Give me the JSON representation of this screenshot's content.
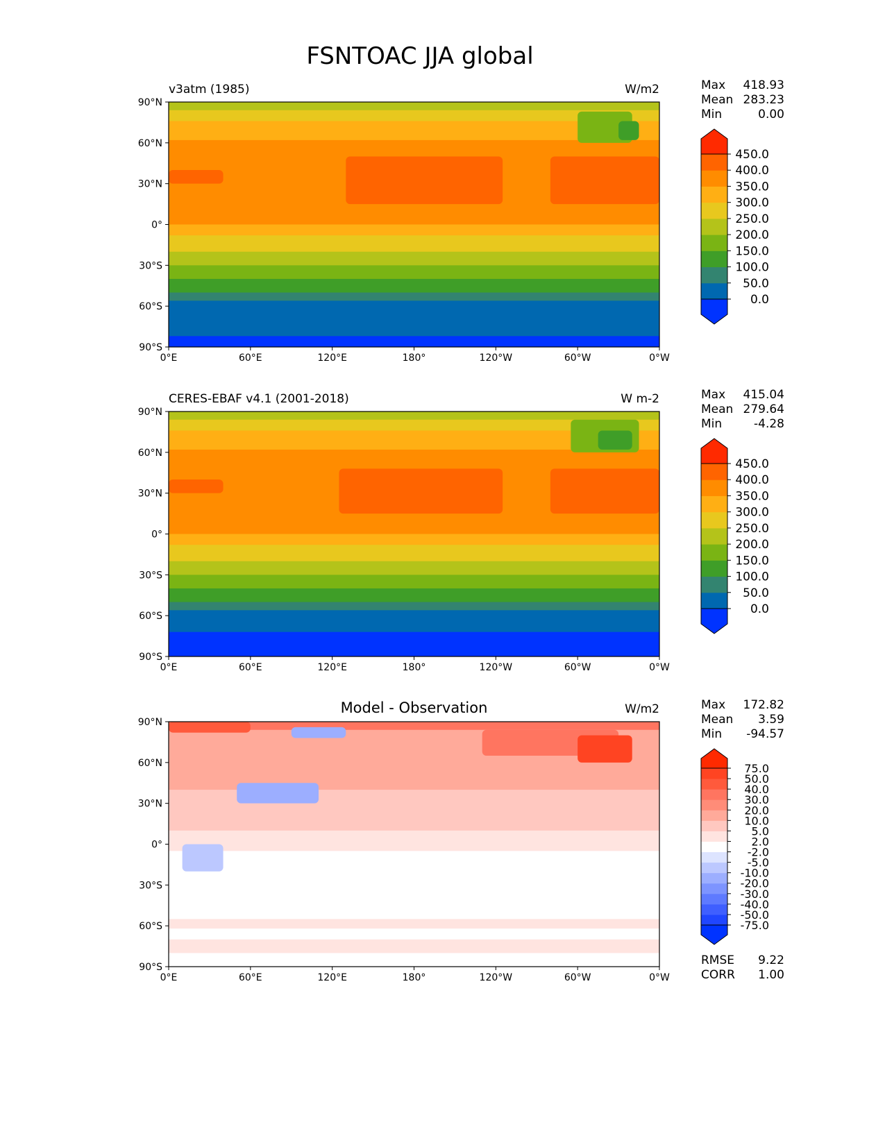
{
  "chart_data": [
    {
      "type": "heatmap",
      "title": "FSNTOAC JJA global",
      "subtitle": "v3atm (1985)",
      "units": "W/m2",
      "stats": {
        "max_label": "Max",
        "max": "418.93",
        "mean_label": "Mean",
        "mean": "283.23",
        "min_label": "Min",
        "min": "0.00"
      },
      "levels": [
        0,
        50,
        100,
        150,
        200,
        250,
        300,
        350,
        400,
        450
      ],
      "level_labels": [
        "0.0",
        "50.0",
        "100.0",
        "150.0",
        "200.0",
        "250.0",
        "300.0",
        "350.0",
        "400.0",
        "450.0"
      ],
      "colors": [
        "#0033ff",
        "#0068b0",
        "#338470",
        "#3f9e28",
        "#7ab414",
        "#b4c31a",
        "#e8c81e",
        "#ffaf14",
        "#ff8c00",
        "#ff6400",
        "#ff2a00"
      ],
      "bands": [
        [
          90,
          84,
          225
        ],
        [
          84,
          76,
          275
        ],
        [
          76,
          62,
          325
        ],
        [
          62,
          20,
          375
        ],
        [
          20,
          0,
          375
        ],
        [
          0,
          -8,
          325
        ],
        [
          -8,
          -20,
          275
        ],
        [
          -20,
          -30,
          225
        ],
        [
          -30,
          -40,
          175
        ],
        [
          -40,
          -50,
          125
        ],
        [
          -50,
          -56,
          75
        ],
        [
          -56,
          -82,
          25
        ],
        [
          -82,
          -90,
          -10
        ]
      ],
      "patches": [
        [
          130,
          245,
          15,
          50,
          425
        ],
        [
          280,
          360,
          15,
          50,
          425
        ],
        [
          300,
          340,
          60,
          83,
          175
        ],
        [
          330,
          345,
          62,
          76,
          125
        ],
        [
          0,
          40,
          30,
          40,
          425
        ]
      ]
    },
    {
      "type": "heatmap",
      "subtitle": "CERES-EBAF v4.1 (2001-2018)",
      "units": "W m-2",
      "stats": {
        "max_label": "Max",
        "max": "415.04",
        "mean_label": "Mean",
        "mean": "279.64",
        "min_label": "Min",
        "min": "-4.28"
      },
      "levels": [
        0,
        50,
        100,
        150,
        200,
        250,
        300,
        350,
        400,
        450
      ],
      "level_labels": [
        "0.0",
        "50.0",
        "100.0",
        "150.0",
        "200.0",
        "250.0",
        "300.0",
        "350.0",
        "400.0",
        "450.0"
      ],
      "colors": [
        "#0033ff",
        "#0068b0",
        "#338470",
        "#3f9e28",
        "#7ab414",
        "#b4c31a",
        "#e8c81e",
        "#ffaf14",
        "#ff8c00",
        "#ff6400",
        "#ff2a00"
      ],
      "bands": [
        [
          90,
          84,
          225
        ],
        [
          84,
          76,
          275
        ],
        [
          76,
          62,
          325
        ],
        [
          62,
          20,
          375
        ],
        [
          20,
          0,
          375
        ],
        [
          0,
          -8,
          325
        ],
        [
          -8,
          -20,
          275
        ],
        [
          -20,
          -30,
          225
        ],
        [
          -30,
          -40,
          175
        ],
        [
          -40,
          -50,
          125
        ],
        [
          -50,
          -56,
          75
        ],
        [
          -56,
          -72,
          25
        ],
        [
          -72,
          -90,
          -10
        ]
      ],
      "patches": [
        [
          125,
          245,
          15,
          48,
          425
        ],
        [
          280,
          360,
          15,
          48,
          425
        ],
        [
          295,
          345,
          60,
          84,
          175
        ],
        [
          315,
          340,
          62,
          76,
          125
        ],
        [
          0,
          40,
          30,
          40,
          425
        ]
      ]
    },
    {
      "type": "heatmap",
      "title": "Model - Observation",
      "units": "W/m2",
      "stats": {
        "max_label": "Max",
        "max": "172.82",
        "mean_label": "Mean",
        "mean": "3.59",
        "min_label": "Min",
        "min": "-94.57"
      },
      "levels": [
        -75,
        -50,
        -40,
        -30,
        -20,
        -10,
        -5,
        -2,
        2,
        5,
        10,
        20,
        30,
        40,
        50,
        75
      ],
      "level_labels": [
        "-75.0",
        "-50.0",
        "-40.0",
        "-30.0",
        "-20.0",
        "-10.0",
        "-5.0",
        "-2.0",
        "2.0",
        "5.0",
        "10.0",
        "20.0",
        "30.0",
        "40.0",
        "50.0",
        "75.0"
      ],
      "colors": [
        "#0033ff",
        "#2046ff",
        "#3f5fff",
        "#5e7aff",
        "#7d94ff",
        "#9caeff",
        "#bcc8ff",
        "#dde4ff",
        "#ffffff",
        "#ffe4e0",
        "#ffc8c0",
        "#ffaa9a",
        "#ff8c78",
        "#ff7560",
        "#ff5a3c",
        "#ff4422",
        "#ff2a00"
      ],
      "bands": [
        [
          90,
          84,
          35
        ],
        [
          84,
          70,
          15
        ],
        [
          70,
          40,
          12
        ],
        [
          40,
          10,
          7
        ],
        [
          10,
          -5,
          4
        ],
        [
          -5,
          -20,
          0
        ],
        [
          -20,
          -55,
          0
        ],
        [
          -55,
          -62,
          4
        ],
        [
          -62,
          -70,
          0
        ],
        [
          -70,
          -80,
          4
        ],
        [
          -80,
          -90,
          0
        ]
      ],
      "patches": [
        [
          230,
          330,
          65,
          84,
          35
        ],
        [
          300,
          340,
          60,
          80,
          60
        ],
        [
          0,
          60,
          82,
          90,
          40
        ],
        [
          90,
          130,
          78,
          86,
          -15
        ],
        [
          50,
          110,
          30,
          45,
          -12
        ],
        [
          10,
          40,
          -20,
          0,
          -7
        ]
      ],
      "rmse_label": "RMSE",
      "rmse": "9.22",
      "corr_label": "CORR",
      "corr": "1.00"
    }
  ],
  "axes": {
    "x_ticks": [
      "0°E",
      "60°E",
      "120°E",
      "180°",
      "120°W",
      "60°W",
      "0°W"
    ],
    "y_ticks": [
      "90°N",
      "60°N",
      "30°N",
      "0°",
      "30°S",
      "60°S",
      "90°S"
    ]
  }
}
